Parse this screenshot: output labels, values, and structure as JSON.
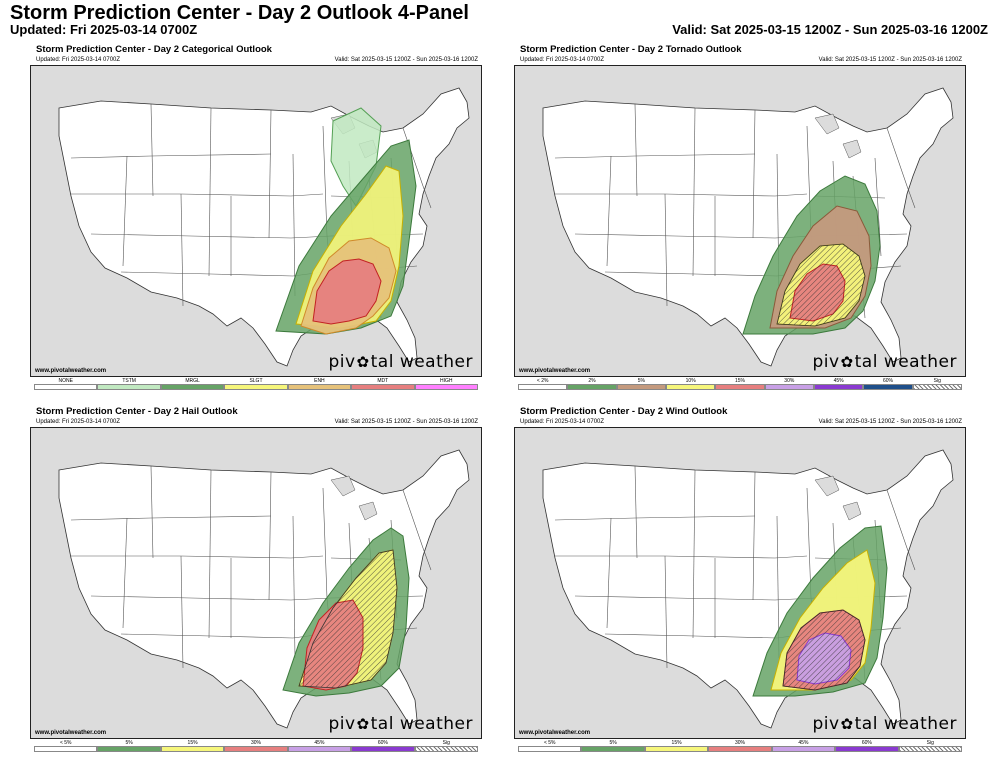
{
  "header": {
    "title": "Storm Prediction Center - Day 2 Outlook 4-Panel",
    "updated": "Updated: Fri 2025-03-14 0700Z",
    "valid": "Valid: Sat 2025-03-15 1200Z - Sun 2025-03-16 1200Z"
  },
  "panels": [
    {
      "title": "Storm Prediction Center - Day 2 Categorical Outlook",
      "updated": "Updated: Fri 2025-03-14 0700Z",
      "valid": "Valid: Sat 2025-03-15 1200Z - Sun 2025-03-16 1200Z",
      "site": "www.pivotalweather.com",
      "brand_left": "piv",
      "brand_right": "tal weather",
      "legend": [
        {
          "label": "NONE",
          "color": "#ffffff"
        },
        {
          "label": "TSTM",
          "color": "#c1e9c1"
        },
        {
          "label": "MRGL",
          "color": "#66a366"
        },
        {
          "label": "SLGT",
          "color": "#f6f67b"
        },
        {
          "label": "ENH",
          "color": "#e6c27a"
        },
        {
          "label": "MDT",
          "color": "#e67f7f"
        },
        {
          "label": "HIGH",
          "color": "#ff80ff"
        }
      ]
    },
    {
      "title": "Storm Prediction Center - Day 2 Tornado Outlook",
      "updated": "Updated: Fri 2025-03-14 0700Z",
      "valid": "Valid: Sat 2025-03-15 1200Z - Sun 2025-03-16 1200Z",
      "site": "www.pivotalweather.com",
      "brand_left": "piv",
      "brand_right": "tal weather",
      "legend": [
        {
          "label": "< 2%",
          "color": "#ffffff"
        },
        {
          "label": "2%",
          "color": "#66a366"
        },
        {
          "label": "5%",
          "color": "#c49a7e"
        },
        {
          "label": "10%",
          "color": "#f6f67b"
        },
        {
          "label": "15%",
          "color": "#e67f7f"
        },
        {
          "label": "30%",
          "color": "#c8a0e6"
        },
        {
          "label": "45%",
          "color": "#8a3ad0"
        },
        {
          "label": "60%",
          "color": "#1f4f8a"
        },
        {
          "label": "Sig",
          "color": "hatch"
        }
      ]
    },
    {
      "title": "Storm Prediction Center - Day 2 Hail Outlook",
      "updated": "Updated: Fri 2025-03-14 0700Z",
      "valid": "Valid: Sat 2025-03-15 1200Z - Sun 2025-03-16 1200Z",
      "site": "www.pivotalweather.com",
      "brand_left": "piv",
      "brand_right": "tal weather",
      "legend": [
        {
          "label": "< 5%",
          "color": "#ffffff"
        },
        {
          "label": "5%",
          "color": "#66a366"
        },
        {
          "label": "15%",
          "color": "#f6f67b"
        },
        {
          "label": "30%",
          "color": "#e67f7f"
        },
        {
          "label": "45%",
          "color": "#c8a0e6"
        },
        {
          "label": "60%",
          "color": "#8a3ad0"
        },
        {
          "label": "Sig",
          "color": "hatch"
        }
      ]
    },
    {
      "title": "Storm Prediction Center - Day 2 Wind Outlook",
      "updated": "Updated: Fri 2025-03-14 0700Z",
      "valid": "Valid: Sat 2025-03-15 1200Z - Sun 2025-03-16 1200Z",
      "site": "www.pivotalweather.com",
      "brand_left": "piv",
      "brand_right": "tal weather",
      "legend": [
        {
          "label": "< 5%",
          "color": "#ffffff"
        },
        {
          "label": "5%",
          "color": "#66a366"
        },
        {
          "label": "15%",
          "color": "#f6f67b"
        },
        {
          "label": "30%",
          "color": "#e67f7f"
        },
        {
          "label": "45%",
          "color": "#c8a0e6"
        },
        {
          "label": "60%",
          "color": "#8a3ad0"
        },
        {
          "label": "Sig",
          "color": "hatch"
        }
      ]
    }
  ]
}
